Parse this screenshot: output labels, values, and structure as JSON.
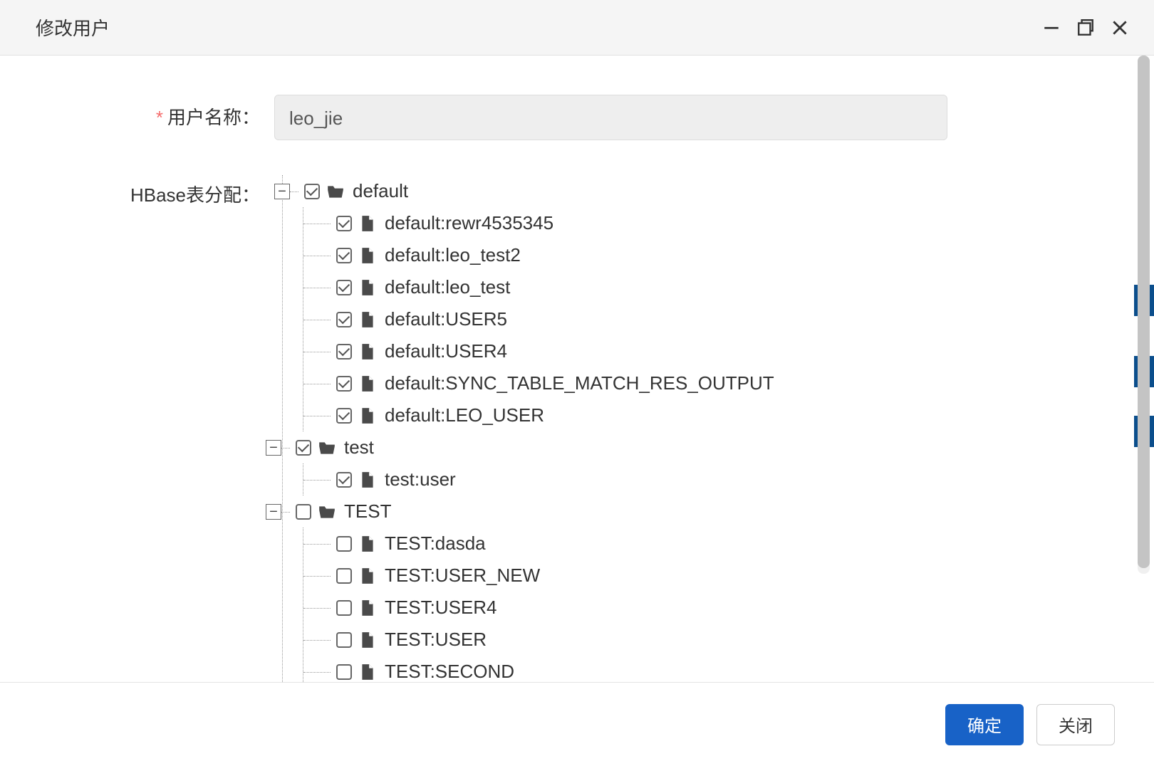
{
  "dialog": {
    "title": "修改用户",
    "form": {
      "username_label": "用户名称：",
      "username_value": "leo_jie",
      "table_assign_label": "HBase表分配："
    },
    "buttons": {
      "confirm": "确定",
      "close": "关闭"
    }
  },
  "tree": {
    "groups": [
      {
        "label": "default",
        "checked": true,
        "expanded": true,
        "children": [
          {
            "label": "default:rewr4535345",
            "checked": true
          },
          {
            "label": "default:leo_test2",
            "checked": true
          },
          {
            "label": "default:leo_test",
            "checked": true
          },
          {
            "label": "default:USER5",
            "checked": true
          },
          {
            "label": "default:USER4",
            "checked": true
          },
          {
            "label": "default:SYNC_TABLE_MATCH_RES_OUTPUT",
            "checked": true
          },
          {
            "label": "default:LEO_USER",
            "checked": true
          }
        ]
      },
      {
        "label": "test",
        "checked": true,
        "expanded": true,
        "children": [
          {
            "label": "test:user",
            "checked": true
          }
        ]
      },
      {
        "label": "TEST",
        "checked": false,
        "expanded": true,
        "children": [
          {
            "label": "TEST:dasda",
            "checked": false
          },
          {
            "label": "TEST:USER_NEW",
            "checked": false
          },
          {
            "label": "TEST:USER4",
            "checked": false
          },
          {
            "label": "TEST:USER",
            "checked": false
          },
          {
            "label": "TEST:SECOND",
            "checked": false
          }
        ]
      }
    ]
  },
  "colors": {
    "header_bg": "#f5f5f5",
    "border": "#e0e0e0",
    "text": "#333333",
    "input_bg": "#eeeeee",
    "primary_btn": "#1862c7",
    "icon_fill": "#4a4a4a",
    "dotted_line": "#999999",
    "required": "#f56c6c"
  },
  "toggle_glyph": "−",
  "icons": {
    "folder": "folder-open-icon",
    "file": "file-icon"
  },
  "background_stubs": [
    400,
    500,
    584
  ]
}
